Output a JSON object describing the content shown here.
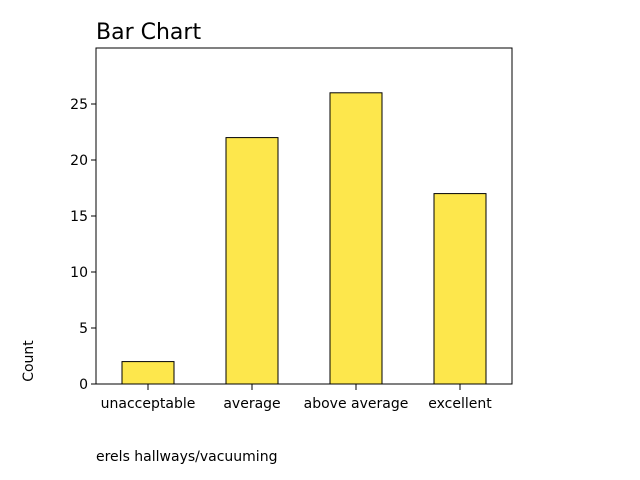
{
  "chart_data": {
    "type": "bar",
    "title": "Bar Chart",
    "categories": [
      "unacceptable",
      "average",
      "above average",
      "excellent"
    ],
    "values": [
      2,
      22,
      26,
      17
    ],
    "xlabel": "erels hallways/vacuuming",
    "ylabel": "Count",
    "ylim": [
      0,
      30
    ],
    "yticks": [
      0,
      5,
      10,
      15,
      20,
      25
    ],
    "bar_color": "#fde74c",
    "bar_edge_color": "#000000",
    "grid": false,
    "legend": false
  }
}
